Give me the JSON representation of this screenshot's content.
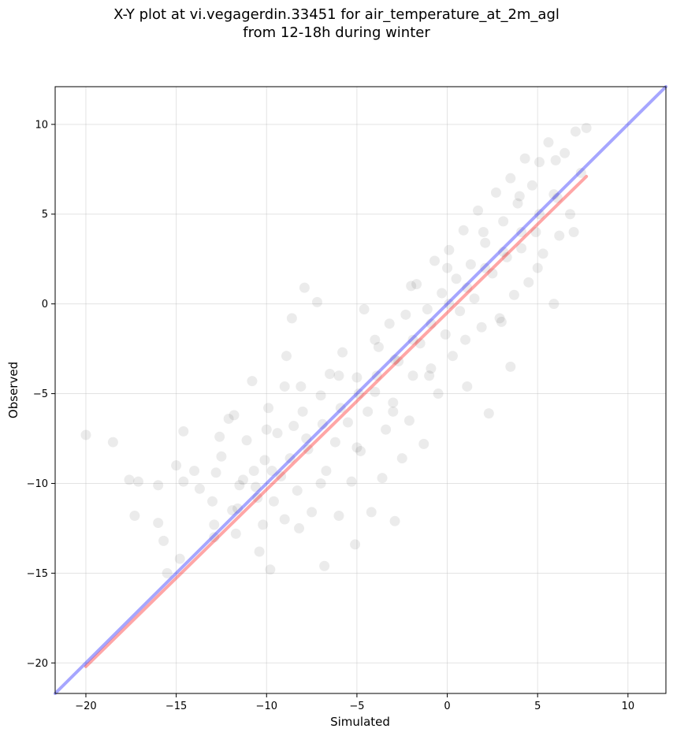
{
  "chart_data": {
    "type": "scatter",
    "title_line1": "X-Y plot at vi.vegagerdin.33451 for air_temperature_at_2m_agl",
    "title_line2": "from 12-18h during winter",
    "xlabel": "Simulated",
    "ylabel": "Observed",
    "xlim": [
      -21.7,
      12.1
    ],
    "ylim": [
      -21.7,
      12.1
    ],
    "xticks": [
      -20,
      -15,
      -10,
      -5,
      0,
      5,
      10
    ],
    "yticks": [
      -20,
      -15,
      -10,
      -5,
      0,
      5,
      10
    ],
    "grid": true,
    "point_color": "#000000",
    "point_alpha": 0.08,
    "points": [
      [
        -20,
        -7.3
      ],
      [
        -18.5,
        -7.7
      ],
      [
        -17.6,
        -9.8
      ],
      [
        -17.3,
        -11.8
      ],
      [
        -17.1,
        -9.9
      ],
      [
        -16.0,
        -10.1
      ],
      [
        -16.0,
        -12.2
      ],
      [
        -15.7,
        -13.2
      ],
      [
        -15.5,
        -15.0
      ],
      [
        -15.0,
        -9.0
      ],
      [
        -14.8,
        -14.2
      ],
      [
        -14.6,
        -9.9
      ],
      [
        -14.6,
        -7.1
      ],
      [
        -14.0,
        -9.3
      ],
      [
        -13.7,
        -10.3
      ],
      [
        -13.0,
        -11.0
      ],
      [
        -12.9,
        -12.3
      ],
      [
        -12.8,
        -9.4
      ],
      [
        -12.6,
        -7.4
      ],
      [
        -12.5,
        -8.5
      ],
      [
        -12.1,
        -6.4
      ],
      [
        -11.8,
        -6.2
      ],
      [
        -11.9,
        -11.5
      ],
      [
        -11.7,
        -12.8
      ],
      [
        -11.5,
        -10.1
      ],
      [
        -11.3,
        -9.8
      ],
      [
        -11.1,
        -7.6
      ],
      [
        -10.8,
        -4.3
      ],
      [
        -10.7,
        -9.3
      ],
      [
        -10.5,
        -10.8
      ],
      [
        -10.4,
        -13.8
      ],
      [
        -10.2,
        -12.3
      ],
      [
        -10.1,
        -8.7
      ],
      [
        -9.9,
        -5.8
      ],
      [
        -9.8,
        -14.8
      ],
      [
        -9.6,
        -11.0
      ],
      [
        -9.4,
        -7.2
      ],
      [
        -9.2,
        -9.6
      ],
      [
        -9.0,
        -4.6
      ],
      [
        -8.9,
        -2.9
      ],
      [
        -8.6,
        -0.8
      ],
      [
        -8.5,
        -6.8
      ],
      [
        -8.3,
        -10.4
      ],
      [
        -8.2,
        -12.5
      ],
      [
        -8.1,
        -4.6
      ],
      [
        -7.9,
        0.9
      ],
      [
        -7.7,
        -8.1
      ],
      [
        -7.5,
        -11.6
      ],
      [
        -7.2,
        0.1
      ],
      [
        -7.0,
        -5.1
      ],
      [
        -6.8,
        -14.6
      ],
      [
        -6.7,
        -9.3
      ],
      [
        -6.5,
        -3.9
      ],
      [
        -6.2,
        -7.7
      ],
      [
        -6.0,
        -11.8
      ],
      [
        -5.8,
        -2.7
      ],
      [
        -5.5,
        -6.6
      ],
      [
        -5.3,
        -9.9
      ],
      [
        -5.1,
        -13.4
      ],
      [
        -5.0,
        -4.1
      ],
      [
        -4.8,
        -8.2
      ],
      [
        -4.6,
        -0.3
      ],
      [
        -4.4,
        -6.0
      ],
      [
        -4.2,
        -11.6
      ],
      [
        -4.0,
        -4.9
      ],
      [
        -3.8,
        -2.4
      ],
      [
        -3.6,
        -9.7
      ],
      [
        -3.4,
        -7.0
      ],
      [
        -3.2,
        -1.1
      ],
      [
        -3.0,
        -5.5
      ],
      [
        -2.9,
        -12.1
      ],
      [
        -2.7,
        -3.2
      ],
      [
        -2.5,
        -8.6
      ],
      [
        -2.3,
        -0.6
      ],
      [
        -2.1,
        -6.5
      ],
      [
        -1.9,
        -4.0
      ],
      [
        -1.7,
        1.1
      ],
      [
        -1.5,
        -2.2
      ],
      [
        -1.3,
        -7.8
      ],
      [
        -1.1,
        -0.3
      ],
      [
        -0.9,
        -3.6
      ],
      [
        -0.7,
        2.4
      ],
      [
        -0.5,
        -5.0
      ],
      [
        -0.3,
        0.6
      ],
      [
        -0.1,
        -1.7
      ],
      [
        0.1,
        3.0
      ],
      [
        0.3,
        -2.9
      ],
      [
        0.5,
        1.4
      ],
      [
        0.7,
        -0.4
      ],
      [
        0.9,
        4.1
      ],
      [
        1.1,
        -4.6
      ],
      [
        1.3,
        2.2
      ],
      [
        1.5,
        0.3
      ],
      [
        1.7,
        5.2
      ],
      [
        1.9,
        -1.3
      ],
      [
        2.1,
        3.4
      ],
      [
        2.3,
        -6.1
      ],
      [
        2.5,
        1.7
      ],
      [
        2.7,
        6.2
      ],
      [
        2.9,
        -0.8
      ],
      [
        3.1,
        4.6
      ],
      [
        3.3,
        2.6
      ],
      [
        3.5,
        7.0
      ],
      [
        3.7,
        0.5
      ],
      [
        3.9,
        5.6
      ],
      [
        4.1,
        3.1
      ],
      [
        4.3,
        8.1
      ],
      [
        4.5,
        1.2
      ],
      [
        4.7,
        6.6
      ],
      [
        4.9,
        4.0
      ],
      [
        5.1,
        7.9
      ],
      [
        5.3,
        2.8
      ],
      [
        5.6,
        9.0
      ],
      [
        5.9,
        6.1
      ],
      [
        6.2,
        3.8
      ],
      [
        6.5,
        8.4
      ],
      [
        6.8,
        5.0
      ],
      [
        7.1,
        9.6
      ],
      [
        7.4,
        7.3
      ],
      [
        7.7,
        9.8
      ],
      [
        -12.9,
        -13.0
      ],
      [
        -11.6,
        -11.4
      ],
      [
        -10.6,
        -10.2
      ],
      [
        -9.7,
        -9.3
      ],
      [
        -8.7,
        -8.6
      ],
      [
        -7.8,
        -7.5
      ],
      [
        -6.9,
        -6.7
      ],
      [
        -5.9,
        -5.8
      ],
      [
        -4.9,
        -5.0
      ],
      [
        -3.9,
        -4.0
      ],
      [
        -2.9,
        -3.1
      ],
      [
        -1.9,
        -2.0
      ],
      [
        -0.9,
        -1.1
      ],
      [
        0.1,
        0.0
      ],
      [
        1.1,
        0.9
      ],
      [
        2.1,
        2.0
      ],
      [
        3.1,
        2.9
      ],
      [
        4.1,
        4.0
      ],
      [
        5.1,
        5.0
      ],
      [
        6.1,
        5.9
      ],
      [
        -10.0,
        -7.0
      ],
      [
        -9.0,
        -12.0
      ],
      [
        -8.0,
        -6.0
      ],
      [
        -7.0,
        -10.0
      ],
      [
        -6.0,
        -4.0
      ],
      [
        -5.0,
        -8.0
      ],
      [
        -4.0,
        -2.0
      ],
      [
        -3.0,
        -6.0
      ],
      [
        -2.0,
        1.0
      ],
      [
        -1.0,
        -4.0
      ],
      [
        0.0,
        2.0
      ],
      [
        1.0,
        -2.0
      ],
      [
        2.0,
        4.0
      ],
      [
        3.0,
        -1.0
      ],
      [
        4.0,
        6.0
      ],
      [
        5.0,
        2.0
      ],
      [
        6.0,
        8.0
      ],
      [
        7.0,
        4.0
      ],
      [
        3.5,
        -3.5
      ],
      [
        5.9,
        0.0
      ]
    ],
    "lines": [
      {
        "color": "#ff0000",
        "alpha": 0.35,
        "points": [
          [
            -20,
            -20.2
          ],
          [
            7.7,
            7.1
          ]
        ]
      },
      {
        "color": "#0000ff",
        "alpha": 0.35,
        "points": [
          [
            -21.7,
            -21.7
          ],
          [
            12.1,
            12.1
          ]
        ]
      }
    ]
  }
}
